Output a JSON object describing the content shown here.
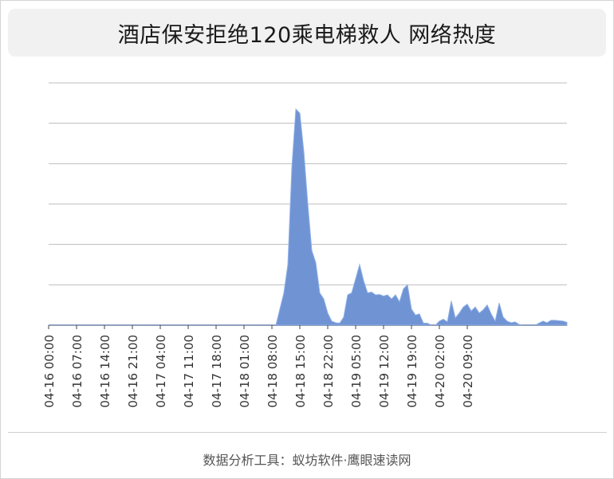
{
  "title": "酒店保安拒绝120乘电梯救人 网络热度",
  "footer": "数据分析工具：蚁坊软件·鹰眼速读网",
  "chart_data": {
    "type": "area",
    "title": "酒店保安拒绝120乘电梯救人 网络热度",
    "xlabel": "",
    "ylabel": "",
    "x_ticks": [
      "04-16 00:00",
      "04-16 07:00",
      "04-16 14:00",
      "04-16 21:00",
      "04-17 04:00",
      "04-17 11:00",
      "04-17 18:00",
      "04-18 01:00",
      "04-18 08:00",
      "04-18 15:00",
      "04-18 22:00",
      "04-19 05:00",
      "04-19 12:00",
      "04-19 19:00",
      "04-20 02:00",
      "04-20 09:00"
    ],
    "x_start": "04-16 00:00",
    "x_step_hours": 1,
    "ylim": [
      0,
      6
    ],
    "y_gridlines": [
      0,
      1,
      2,
      3,
      4,
      5,
      6
    ],
    "y_tick_labels_shown": false,
    "grid": true,
    "fill_color": "#7093d3",
    "stroke_color": "#8fb1e8",
    "values": [
      0,
      0,
      0,
      0,
      0,
      0,
      0,
      0,
      0,
      0,
      0,
      0,
      0,
      0,
      0,
      0,
      0,
      0,
      0,
      0,
      0,
      0,
      0,
      0,
      0,
      0,
      0,
      0,
      0,
      0,
      0,
      0,
      0,
      0,
      0,
      0,
      0,
      0,
      0,
      0,
      0,
      0,
      0,
      0,
      0,
      0,
      0,
      0,
      0,
      0,
      0,
      0,
      0,
      0,
      0,
      0,
      0,
      0,
      0.4,
      0.8,
      1.5,
      3.9,
      5.35,
      5.25,
      4.3,
      3.0,
      1.85,
      1.55,
      0.8,
      0.65,
      0.3,
      0.1,
      0.06,
      0.05,
      0.2,
      0.75,
      0.8,
      1.15,
      1.5,
      1.1,
      0.8,
      0.82,
      0.75,
      0.76,
      0.72,
      0.75,
      0.65,
      0.75,
      0.58,
      0.9,
      1.0,
      0.4,
      0.25,
      0.28,
      0.05,
      0.05,
      0,
      0,
      0.1,
      0.15,
      0.08,
      0.6,
      0.18,
      0.3,
      0.45,
      0.52,
      0.35,
      0.45,
      0.3,
      0.38,
      0.5,
      0.28,
      0.1,
      0.55,
      0.2,
      0.1,
      0.06,
      0.08,
      0.02,
      0,
      0,
      0,
      0,
      0.05,
      0.1,
      0.06,
      0.12,
      0.12,
      0.11,
      0.1,
      0.07
    ]
  }
}
